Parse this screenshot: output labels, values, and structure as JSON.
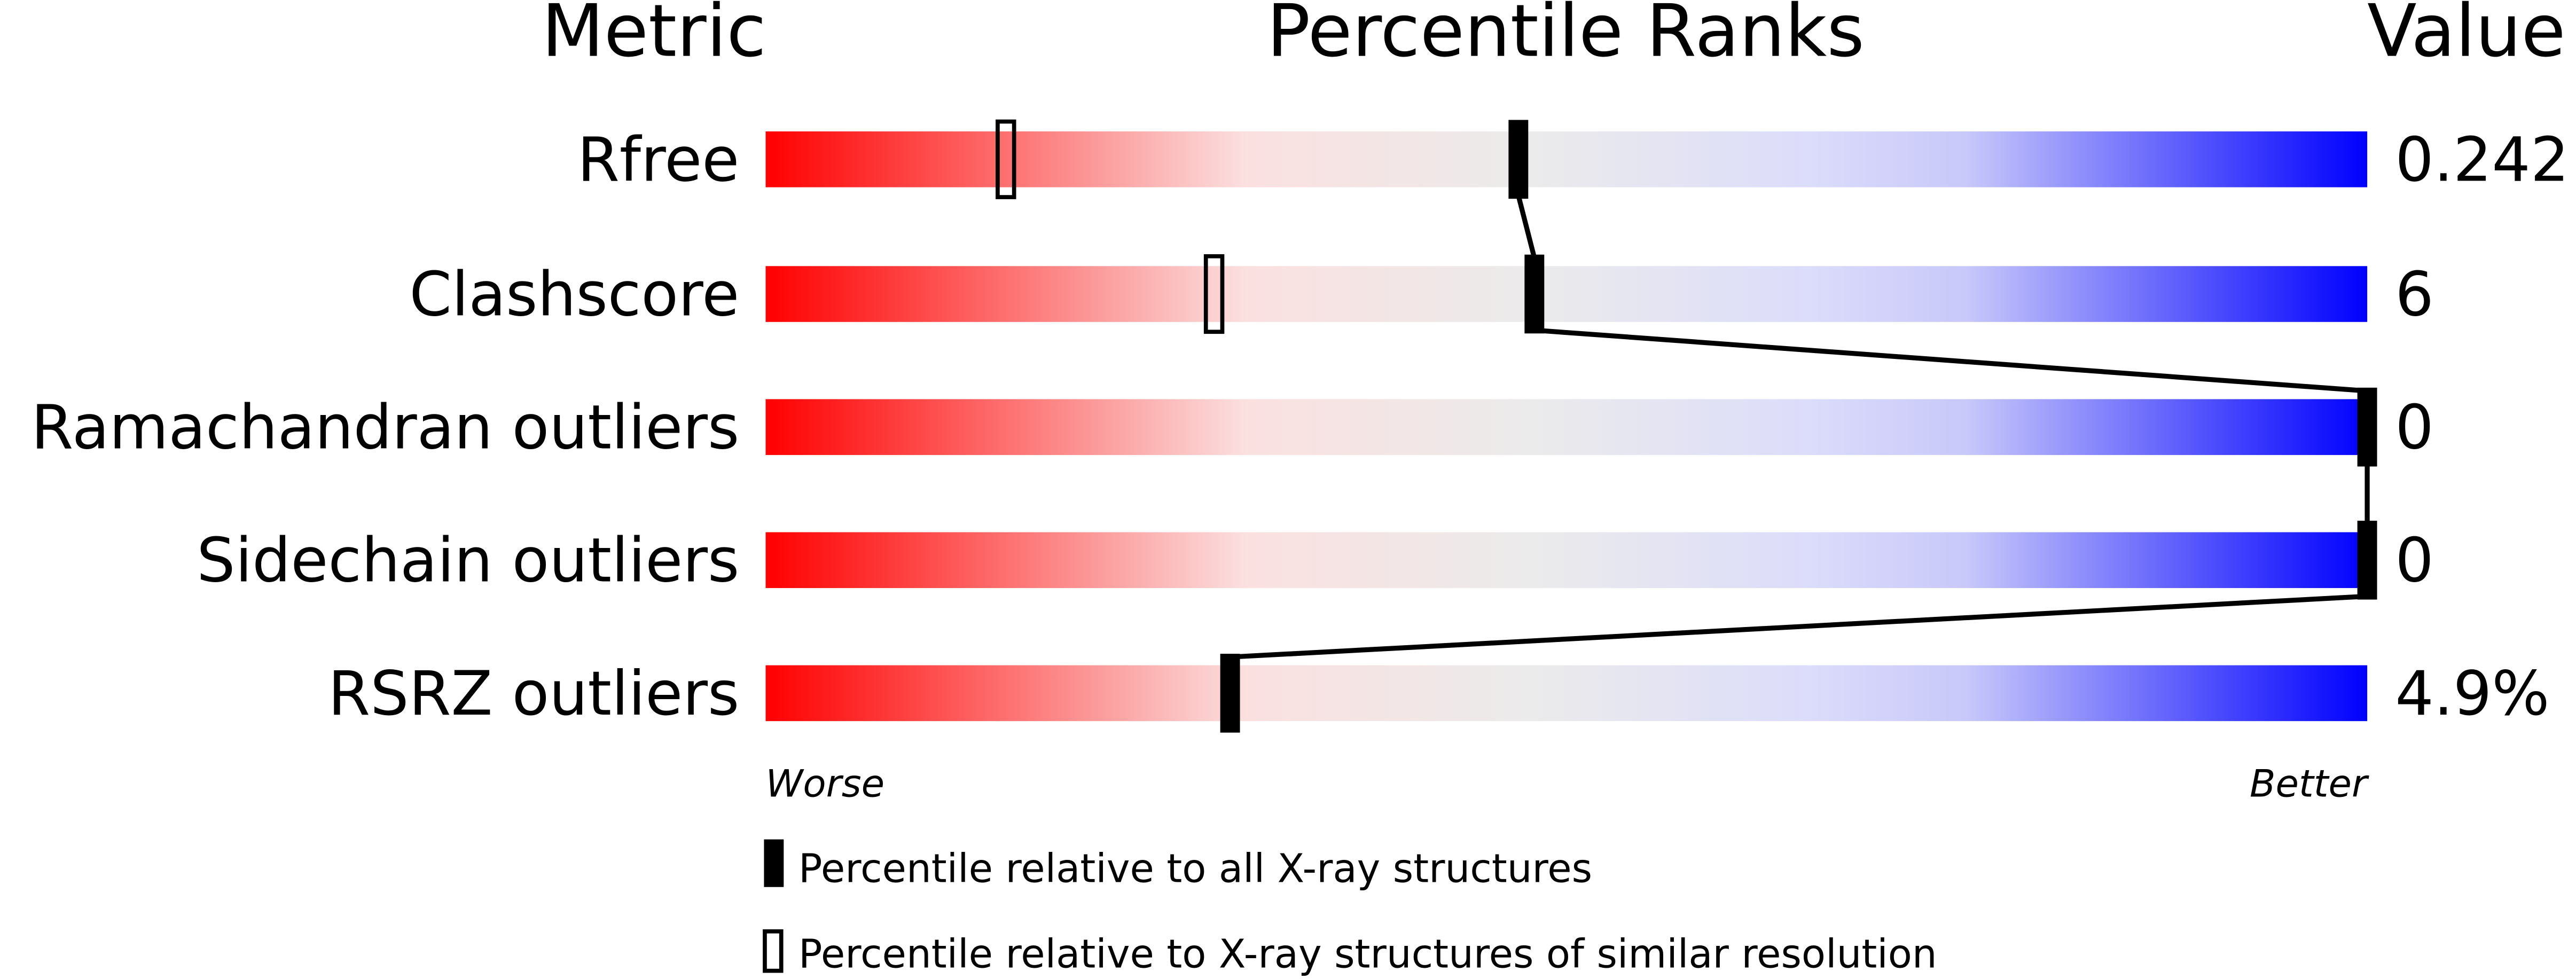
{
  "chart_data": {
    "type": "percentile-bar",
    "headers": {
      "metric": "Metric",
      "ranks": "Percentile Ranks",
      "value": "Value"
    },
    "xlim": [
      0,
      100
    ],
    "axis_labels": {
      "left": "Worse",
      "right": "Better"
    },
    "gradient_colors": [
      "#ff0000",
      "#fbe0e0",
      "#ebebeb",
      "#dcdcfb",
      "#0000ff"
    ],
    "rows": [
      {
        "metric": "Rfree",
        "value": "0.242",
        "percentile_all": 47,
        "percentile_similar": 15
      },
      {
        "metric": "Clashscore",
        "value": "6",
        "percentile_all": 48,
        "percentile_similar": 28
      },
      {
        "metric": "Ramachandran outliers",
        "value": "0",
        "percentile_all": 100,
        "percentile_similar": null
      },
      {
        "metric": "Sidechain outliers",
        "value": "0",
        "percentile_all": 100,
        "percentile_similar": null
      },
      {
        "metric": "RSRZ outliers",
        "value": "4.9%",
        "percentile_all": 29,
        "percentile_similar": null
      }
    ],
    "legend": [
      {
        "marker": "filled",
        "label": "Percentile relative to all X-ray structures"
      },
      {
        "marker": "open",
        "label": "Percentile relative to X-ray structures of similar resolution"
      }
    ]
  }
}
